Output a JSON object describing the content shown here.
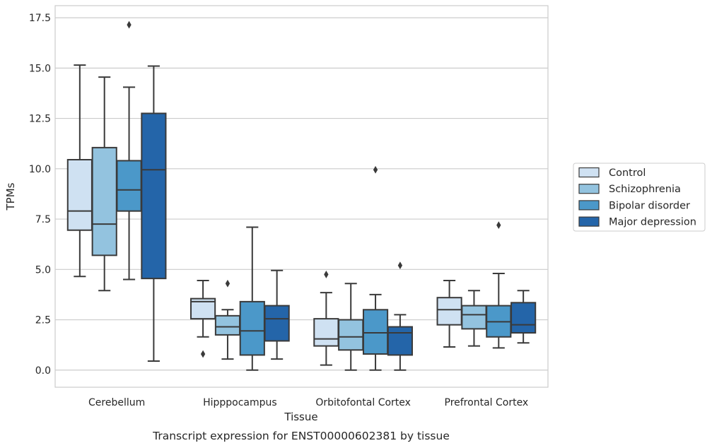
{
  "caption": "Transcript expression for ENST00000602381 by tissue",
  "chart_data": {
    "type": "box",
    "title": "",
    "xlabel": "Tissue",
    "ylabel": "TPMs",
    "ylim": [
      -0.85,
      18.1
    ],
    "yticks": [
      "0.0",
      "2.5",
      "5.0",
      "7.5",
      "10.0",
      "12.5",
      "15.0",
      "17.5"
    ],
    "grid": "horizontal",
    "legend_position": "right",
    "categories": [
      "Cerebellum",
      "Hipppocampus",
      "Orbitofontal Cortex",
      "Prefrontal Cortex"
    ],
    "series": [
      {
        "name": "Control",
        "color": "#cfe1f2",
        "boxes": [
          {
            "whislo": 4.65,
            "q1": 6.95,
            "med": 7.9,
            "q3": 10.45,
            "whishi": 15.15,
            "fliers": []
          },
          {
            "whislo": 1.65,
            "q1": 2.55,
            "med": 3.4,
            "q3": 3.55,
            "whishi": 4.45,
            "fliers": [
              0.8
            ]
          },
          {
            "whislo": 0.25,
            "q1": 1.2,
            "med": 1.55,
            "q3": 2.55,
            "whishi": 3.85,
            "fliers": [
              4.75
            ]
          },
          {
            "whislo": 1.15,
            "q1": 2.25,
            "med": 3.0,
            "q3": 3.6,
            "whishi": 4.45,
            "fliers": []
          }
        ]
      },
      {
        "name": "Schizophrenia",
        "color": "#93c3df",
        "boxes": [
          {
            "whislo": 3.95,
            "q1": 5.7,
            "med": 7.25,
            "q3": 11.05,
            "whishi": 14.55,
            "fliers": []
          },
          {
            "whislo": 0.55,
            "q1": 1.75,
            "med": 2.15,
            "q3": 2.7,
            "whishi": 3.0,
            "fliers": [
              4.3
            ]
          },
          {
            "whislo": 0.0,
            "q1": 1.0,
            "med": 1.65,
            "q3": 2.5,
            "whishi": 4.3,
            "fliers": []
          },
          {
            "whislo": 1.2,
            "q1": 2.05,
            "med": 2.75,
            "q3": 3.2,
            "whishi": 3.95,
            "fliers": []
          }
        ]
      },
      {
        "name": "Bipolar disorder",
        "color": "#4b98c9",
        "boxes": [
          {
            "whislo": 4.5,
            "q1": 7.9,
            "med": 8.95,
            "q3": 10.4,
            "whishi": 14.05,
            "fliers": [
              17.15
            ]
          },
          {
            "whislo": 0.0,
            "q1": 0.75,
            "med": 1.95,
            "q3": 3.4,
            "whishi": 7.1,
            "fliers": []
          },
          {
            "whislo": 0.0,
            "q1": 0.8,
            "med": 1.85,
            "q3": 3.0,
            "whishi": 3.75,
            "fliers": [
              9.95
            ]
          },
          {
            "whislo": 1.1,
            "q1": 1.65,
            "med": 2.4,
            "q3": 3.2,
            "whishi": 4.8,
            "fliers": [
              7.2
            ]
          }
        ]
      },
      {
        "name": "Major depression",
        "color": "#2465a9",
        "boxes": [
          {
            "whislo": 0.45,
            "q1": 4.55,
            "med": 9.95,
            "q3": 12.75,
            "whishi": 15.1,
            "fliers": []
          },
          {
            "whislo": 0.55,
            "q1": 1.45,
            "med": 2.55,
            "q3": 3.2,
            "whishi": 4.95,
            "fliers": []
          },
          {
            "whislo": 0.0,
            "q1": 0.75,
            "med": 1.85,
            "q3": 2.15,
            "whishi": 2.75,
            "fliers": [
              5.2
            ]
          },
          {
            "whislo": 1.35,
            "q1": 1.85,
            "med": 2.25,
            "q3": 3.35,
            "whishi": 3.95,
            "fliers": []
          }
        ]
      }
    ]
  }
}
